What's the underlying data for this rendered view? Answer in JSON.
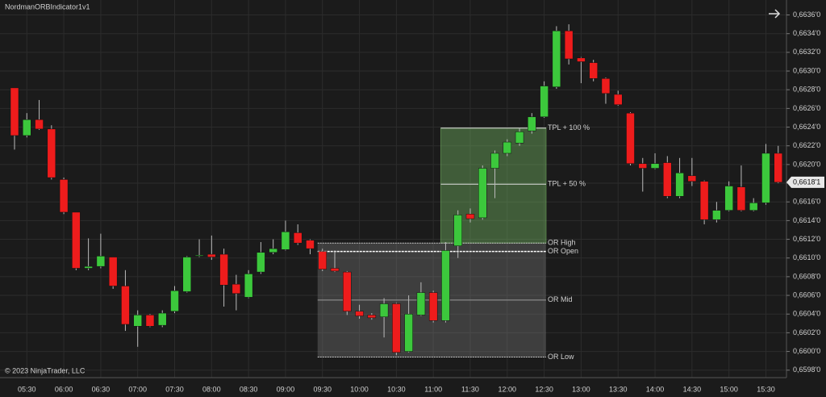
{
  "chart_data": {
    "type": "candlestick",
    "title": "NordmanORBIndicator1v1",
    "footer": "© 2023 NinjaTrader, LLC",
    "categories": [
      null,
      "05:30",
      null,
      null,
      "06:00",
      null,
      null,
      "06:30",
      null,
      null,
      "07:00",
      null,
      null,
      "07:30",
      null,
      null,
      "08:00",
      null,
      null,
      "08:30",
      null,
      null,
      "09:00",
      null,
      null,
      "09:30",
      null,
      null,
      "10:00",
      null,
      null,
      "10:30",
      null,
      null,
      "11:00",
      null,
      null,
      "11:30",
      null,
      null,
      "12:00",
      null,
      null,
      "12:30",
      null,
      null,
      "13:00",
      null,
      null,
      "13:30",
      null,
      null,
      "14:00",
      null,
      null,
      "14:30",
      null,
      null,
      "15:00",
      null,
      null,
      "15:30",
      null
    ],
    "open": [
      0.66282,
      0.66231,
      0.66248,
      0.66238,
      0.66184,
      0.66149,
      0.66089,
      0.66091,
      0.66101,
      0.6607,
      0.66027,
      0.66039,
      0.66028,
      0.66043,
      0.66064,
      0.66102,
      0.66104,
      0.66104,
      0.66072,
      0.66058,
      0.66085,
      0.66106,
      0.66109,
      0.66127,
      0.66119,
      0.66107,
      0.66089,
      0.66085,
      0.66043,
      0.66039,
      0.66037,
      0.66051,
      0.66,
      0.66039,
      0.66063,
      0.66033,
      0.66113,
      0.66147,
      0.66143,
      0.66196,
      0.66212,
      0.66223,
      0.66236,
      0.66251,
      0.66283,
      0.66343,
      0.66314,
      0.66309,
      0.66292,
      0.66275,
      0.66255,
      0.66201,
      0.66196,
      0.66202,
      0.66166,
      0.66188,
      0.66182,
      0.66141,
      0.66151,
      0.66176,
      0.66151,
      0.66159,
      0.66212
    ],
    "high": [
      0.66282,
      0.66255,
      0.66269,
      0.66242,
      0.66186,
      0.66149,
      0.66121,
      0.66126,
      0.66101,
      0.66087,
      0.66044,
      0.6604,
      0.66044,
      0.6607,
      0.66102,
      0.6612,
      0.66124,
      0.6611,
      0.66082,
      0.66087,
      0.66117,
      0.6612,
      0.6614,
      0.66136,
      0.6612,
      0.6611,
      0.66108,
      0.66086,
      0.6605,
      0.66041,
      0.66057,
      0.66052,
      0.6606,
      0.66074,
      0.66065,
      0.66117,
      0.66151,
      0.66153,
      0.66199,
      0.66215,
      0.66227,
      0.66239,
      0.66255,
      0.66289,
      0.66348,
      0.6635,
      0.66315,
      0.66312,
      0.66293,
      0.66279,
      0.66256,
      0.66207,
      0.66212,
      0.66209,
      0.66207,
      0.66207,
      0.66183,
      0.6616,
      0.66182,
      0.66199,
      0.66164,
      0.66222,
      0.6622
    ],
    "low": [
      0.66216,
      0.66229,
      0.66237,
      0.66184,
      0.66147,
      0.66087,
      0.66087,
      0.66089,
      0.66067,
      0.66022,
      0.66005,
      0.66026,
      0.66026,
      0.66041,
      0.66063,
      0.66101,
      0.66098,
      0.66048,
      0.66044,
      0.66057,
      0.66083,
      0.66104,
      0.66108,
      0.66114,
      0.66104,
      0.66086,
      0.66085,
      0.66039,
      0.66035,
      0.66034,
      0.66015,
      0.65996,
      0.65999,
      0.66038,
      0.66031,
      0.66031,
      0.661,
      0.66138,
      0.66141,
      0.66164,
      0.66209,
      0.6622,
      0.66233,
      0.6625,
      0.66281,
      0.66307,
      0.66287,
      0.66289,
      0.66265,
      0.66263,
      0.66199,
      0.66171,
      0.66195,
      0.66164,
      0.66164,
      0.66177,
      0.66136,
      0.66138,
      0.6615,
      0.6615,
      0.6615,
      0.66157,
      0.6618
    ],
    "close": [
      0.66231,
      0.66248,
      0.66238,
      0.66186,
      0.66149,
      0.66089,
      0.66091,
      0.66102,
      0.6607,
      0.66029,
      0.66039,
      0.66027,
      0.66041,
      0.66065,
      0.66101,
      0.66103,
      0.66101,
      0.66071,
      0.66062,
      0.66083,
      0.66106,
      0.6611,
      0.66128,
      0.66116,
      0.6611,
      0.66088,
      0.66086,
      0.66043,
      0.66038,
      0.66036,
      0.66051,
      0.65999,
      0.6604,
      0.66063,
      0.66033,
      0.66108,
      0.66146,
      0.66142,
      0.66196,
      0.66212,
      0.66224,
      0.66235,
      0.66251,
      0.66284,
      0.66343,
      0.66313,
      0.6631,
      0.66292,
      0.66276,
      0.66264,
      0.66201,
      0.66196,
      0.66201,
      0.66166,
      0.66191,
      0.66182,
      0.66141,
      0.66151,
      0.66177,
      0.66151,
      0.66159,
      0.66212,
      0.66181
    ],
    "up_color": "#3cc83c",
    "down_color": "#ee1c1c",
    "last_price": {
      "value": 0.66181,
      "label": "0,6618'1"
    },
    "levels": [
      {
        "label": "OR High",
        "value": 0.66116
      },
      {
        "label": "OR Open",
        "value": 0.66107
      },
      {
        "label": "OR Mid",
        "value": 0.66055
      },
      {
        "label": "OR Low",
        "value": 0.65994
      },
      {
        "label": "TPL + 50 %",
        "value": 0.66179
      },
      {
        "label": "TPL + 100 %",
        "value": 0.66239
      }
    ],
    "ylim": [
      0.65972,
      0.66376
    ],
    "yticks": [
      {
        "value": 0.6598,
        "label": "0,6598'0"
      },
      {
        "value": 0.66,
        "label": "0,6600'0"
      },
      {
        "value": 0.6602,
        "label": "0,6602'0"
      },
      {
        "value": 0.6604,
        "label": "0,6604'0"
      },
      {
        "value": 0.6606,
        "label": "0,6606'0"
      },
      {
        "value": 0.6608,
        "label": "0,6608'0"
      },
      {
        "value": 0.661,
        "label": "0,6610'0"
      },
      {
        "value": 0.6612,
        "label": "0,6612'0"
      },
      {
        "value": 0.6614,
        "label": "0,6614'0"
      },
      {
        "value": 0.6616,
        "label": "0,6616'0"
      },
      {
        "value": 0.6618,
        "label": "0,6618'0"
      },
      {
        "value": 0.662,
        "label": "0,6620'0"
      },
      {
        "value": 0.6622,
        "label": "0,6622'0"
      },
      {
        "value": 0.6624,
        "label": "0,6624'0"
      },
      {
        "value": 0.6626,
        "label": "0,6626'0"
      },
      {
        "value": 0.6628,
        "label": "0,6628'0"
      },
      {
        "value": 0.663,
        "label": "0,6630'0"
      },
      {
        "value": 0.6632,
        "label": "0,6632'0"
      },
      {
        "value": 0.6634,
        "label": "0,6634'0"
      },
      {
        "value": 0.6636,
        "label": "0,6636'0"
      }
    ],
    "grid": true
  }
}
